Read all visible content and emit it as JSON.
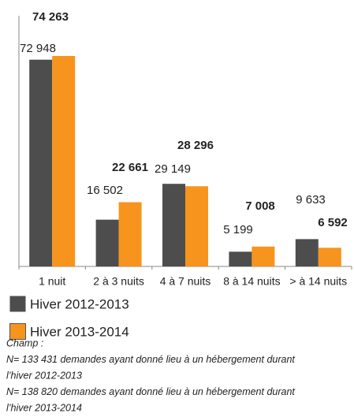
{
  "chart_data": {
    "type": "bar",
    "categories": [
      "1 nuit",
      "2 à 3 nuits",
      "4 à 7 nuits",
      "8 à 14 nuits",
      "> à 14 nuits"
    ],
    "series": [
      {
        "name": "Hiver 2012-2013",
        "color": "#4d4d4d",
        "values": [
          72948,
          16502,
          29149,
          5199,
          9633
        ],
        "value_labels": [
          "72 948",
          "16 502",
          "29 149",
          "5 199",
          "9 633"
        ]
      },
      {
        "name": "Hiver 2013-2014",
        "color": "#f7941d",
        "values": [
          74263,
          22661,
          28296,
          7008,
          6592
        ],
        "value_labels": [
          "74 263",
          "22 661",
          "28 296",
          "7 008",
          "6 592"
        ]
      }
    ],
    "notes": [
      "Champ :",
      "N= 133 431 demandes ayant donné lieu à un hébergement durant",
      "l’hiver 2012-2013",
      "N= 138 820 demandes ayant donné lieu à un hébergement durant",
      "l’hiver 2013-2014"
    ]
  }
}
